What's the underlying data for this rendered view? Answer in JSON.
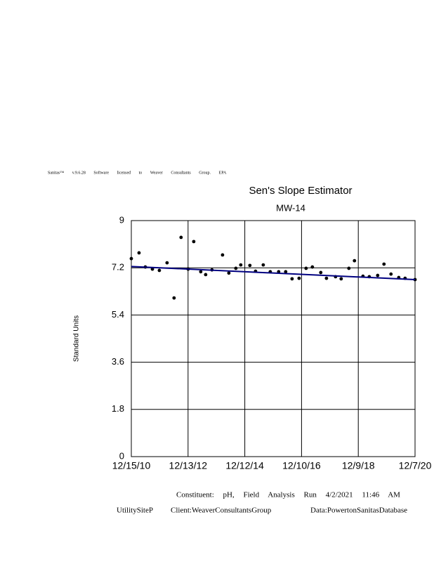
{
  "header": "Sanitas™ v.9.6.28 Software licensed to Weaver Consultants Group. EPA",
  "chart_data": {
    "type": "scatter",
    "title": "Sen's Slope Estimator",
    "subtitle": "MW-14",
    "y_label": "Standard Units",
    "x": [
      "12/15/10",
      "3/24/11",
      "6/13/11",
      "9/12/11",
      "12/10/11",
      "3/18/12",
      "6/16/12",
      "9/14/12",
      "12/14/12",
      "2/24/13",
      "5/25/13",
      "7/27/13",
      "10/16/13",
      "3/1/14",
      "5/21/14",
      "8/19/14",
      "10/21/14",
      "2/15/15",
      "4/29/15",
      "8/6/15",
      "11/4/15",
      "2/20/16",
      "5/20/16",
      "8/10/16",
      "11/8/16",
      "2/6/17",
      "4/28/17",
      "8/14/17",
      "10/26/17",
      "2/20/18",
      "5/3/18",
      "8/10/18",
      "10/21/18",
      "2/7/19",
      "4/29/19",
      "8/15/19",
      "11/4/19",
      "2/2/20",
      "5/12/20",
      "8/1/20",
      "12/7/20"
    ],
    "values": [
      7.55,
      7.77,
      7.23,
      7.15,
      7.1,
      7.39,
      6.05,
      8.36,
      7.15,
      8.2,
      7.05,
      6.94,
      7.12,
      7.69,
      7.0,
      7.18,
      7.31,
      7.29,
      7.07,
      7.31,
      7.05,
      7.05,
      7.05,
      6.78,
      6.8,
      7.18,
      7.23,
      7.02,
      6.8,
      6.86,
      6.78,
      7.18,
      7.47,
      6.88,
      6.86,
      6.91,
      7.34,
      6.96,
      6.83,
      6.8,
      6.75
    ],
    "color": "#000000",
    "trend": {
      "x": [
        "12/15/10",
        "12/7/20"
      ],
      "values": [
        7.25,
        6.75
      ],
      "color": "#000080"
    },
    "xlim": [
      "12/15/10",
      "12/7/20"
    ],
    "xticks": [
      "12/15/10",
      "12/13/12",
      "12/12/14",
      "12/10/16",
      "12/9/18",
      "12/7/20"
    ],
    "ylim": [
      0,
      9
    ],
    "yticks": [
      0,
      1.8,
      3.6,
      5.4,
      7.2,
      9
    ],
    "grid": true
  },
  "footer": {
    "run_info": "Constituent: pH, Field Analysis Run 4/2/2021 11:46 AM",
    "site": "UtilitySiteP",
    "client": "Client:WeaverConsultantsGroup",
    "data_source": "Data:PowertonSanitasDatabase"
  }
}
